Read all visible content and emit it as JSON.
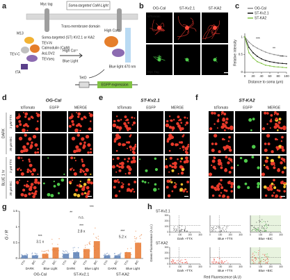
{
  "figure": {
    "a": {
      "letter": "a",
      "myc_tag": "Myc tag",
      "title": "Soma-targeted CaM-Light",
      "transmembrane": "Trans-membrane domain",
      "high_ca_1": "High Ca²⁺",
      "m13": "M13",
      "tev_c": "TEV-C",
      "st": "Soma-targeted (ST) KV2.1 or KA2",
      "tev_n": "TEV-N",
      "cam": "Calmodulin (CaM)",
      "aslov2": "AsLOV2",
      "tevseq": "TEVseq",
      "tta": "tTA",
      "high_ca_2": "High Ca²⁺",
      "blue_light": "Blue Light",
      "blue_light_nm": "Blue light 470 nm",
      "teto": "TetO",
      "egfp": "EGFP expression"
    },
    "b": {
      "letter": "b",
      "columns": [
        "OG-Cal",
        "ST-Kv2.1",
        "ST-KA2"
      ],
      "rows": [
        "tdTomato",
        "Myc Tag"
      ]
    },
    "def": {
      "letters": [
        "d",
        "e",
        "f"
      ],
      "titles": [
        "OG-Cal",
        "ST-Kv2.1",
        "ST-KA2"
      ],
      "columns": [
        "tdTomato",
        "EGFP",
        "MERGE"
      ],
      "conditions": [
        "DARK",
        "BLUE 1 hr"
      ],
      "drugs": [
        "2 μM TTX",
        "30 μM BIC"
      ]
    },
    "h": {
      "letter": "h",
      "constructs": [
        "ST-Kv2.1",
        "ST-KA2"
      ],
      "conditions": [
        "Dark +TTX",
        "Blue +TTX",
        "Blue +BIC"
      ],
      "xlabel": "Red Fluorescence (A.U)",
      "ylabel": "Green Fluorescence (A.U.)",
      "xticks": [
        0,
        100,
        200,
        300
      ],
      "yticks": [
        0,
        100,
        200,
        300
      ]
    }
  },
  "chart_data": [
    {
      "type": "line",
      "letter": "c",
      "xlabel": "Distance to soma (μm)",
      "ylabel": "Relative intensity",
      "x": [
        0,
        10,
        20,
        30,
        40,
        50,
        60,
        70,
        80,
        90,
        100
      ],
      "series": [
        {
          "name": "OG-Cal",
          "color": "#8a8a8a",
          "values": [
            1,
            0.85,
            0.75,
            0.68,
            0.62,
            0.57,
            0.53,
            0.5,
            0.48,
            0.46,
            0.45
          ]
        },
        {
          "name": "ST-Kv2.1",
          "color": "#111111",
          "values": [
            1,
            0.7,
            0.55,
            0.45,
            0.38,
            0.33,
            0.3,
            0.28,
            0.26,
            0.25,
            0.24
          ]
        },
        {
          "name": "ST-KA2",
          "color": "#7fc241",
          "values": [
            1,
            0.55,
            0.4,
            0.3,
            0.25,
            0.2,
            0.18,
            0.16,
            0.15,
            0.14,
            0.13
          ]
        }
      ],
      "annotations": [
        "***",
        "**",
        "***"
      ],
      "xlim": [
        0,
        100
      ],
      "xticks": [
        0,
        20,
        40,
        60,
        80,
        100
      ],
      "ylim": [
        0,
        1.1
      ],
      "yticks": [
        0,
        0.5,
        1
      ]
    },
    {
      "type": "bar",
      "letter": "g",
      "ylabel": "G / R",
      "categories": [
        "TTX",
        "BIC",
        "TTX",
        "BIC",
        "TTX",
        "BIC",
        "TTX",
        "BIC",
        "TTX",
        "BIC",
        "TTX",
        "BIC"
      ],
      "values": [
        0.1,
        0.1,
        0.15,
        0.35,
        0.15,
        0.2,
        0.3,
        0.55,
        0.1,
        0.1,
        0.2,
        0.5
      ],
      "colors": [
        "#5b7fb5",
        "#5b7fb5",
        "#e8772e",
        "#e8772e",
        "#5b7fb5",
        "#5b7fb5",
        "#e8772e",
        "#e8772e",
        "#5b7fb5",
        "#5b7fb5",
        "#e8772e",
        "#e8772e"
      ],
      "light": [
        "DARK",
        "Blue Light",
        "DARK",
        "Blue Light",
        "DARK",
        "Blue Light"
      ],
      "groups": [
        "OG-Cal",
        "ST-Kv2.1",
        "ST-KA2"
      ],
      "annotations": [
        "***",
        "3.1 x",
        "***",
        "2.8 x",
        "***",
        "5.2 x",
        "**",
        "***",
        "n.s."
      ],
      "ylim": [
        0,
        1.5
      ],
      "yticks": [
        0,
        0.5,
        1,
        1.5
      ]
    }
  ]
}
